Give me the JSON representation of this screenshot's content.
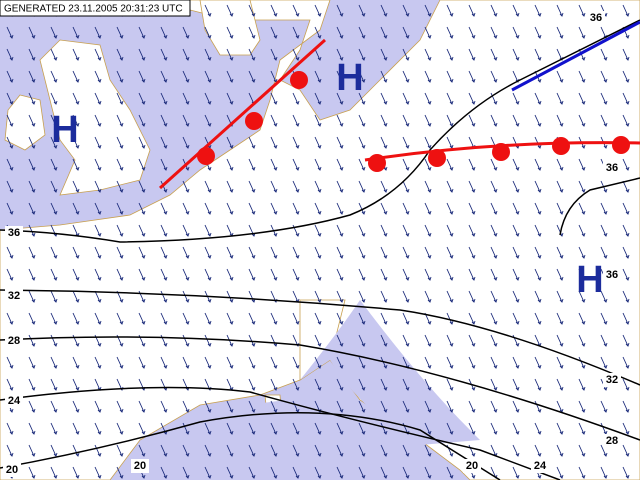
{
  "header": {
    "generated": "GENERATED 23.11.2005 20:31:23 UTC"
  },
  "highs": [
    "H",
    "H",
    "H"
  ],
  "contour_labels": [
    36,
    36,
    36,
    36,
    32,
    32,
    28,
    28,
    24,
    24,
    20,
    20,
    20
  ]
}
